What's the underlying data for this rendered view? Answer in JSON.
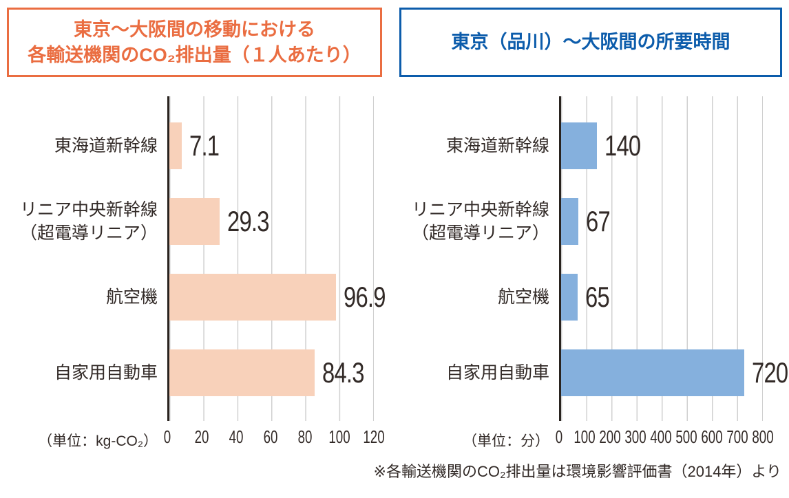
{
  "colors": {
    "background": "#ffffff",
    "text": "#322a27",
    "grid": "#d0d0d0",
    "axis": "#29231f",
    "co2_accent": "#ea6d41",
    "co2_bar": "#f8d1ba",
    "time_accent": "#0c5cab",
    "time_bar": "#85b0dd"
  },
  "footnote": "※各輸送機関のCO₂排出量は環境影響評価書（2014年）より",
  "chart_data": [
    {
      "type": "bar",
      "orientation": "horizontal",
      "title": "東京～大阪間の移動における各輸送機関のCO₂排出量（１人あたり）",
      "title_lines": [
        "東京～大阪間の移動における",
        "各輸送機関のCO₂排出量（１人あたり）"
      ],
      "unit": "（単位：kg-CO₂）",
      "categories": [
        "東海道新幹線",
        "リニア中央新幹線（超電導リニア）",
        "航空機",
        "自家用自動車"
      ],
      "values": [
        7.1,
        29.3,
        96.9,
        84.3
      ],
      "rows": [
        {
          "label_line1": "東海道新幹線",
          "label_line2": "",
          "value_label": "7.1"
        },
        {
          "label_line1": "リニア中央新幹線",
          "label_line2": "（超電導リニア）",
          "value_label": "29.3"
        },
        {
          "label_line1": "航空機",
          "label_line2": "",
          "value_label": "96.9"
        },
        {
          "label_line1": "自家用自動車",
          "label_line2": "",
          "value_label": "84.3"
        }
      ],
      "xlim": [
        0,
        120
      ],
      "tick_labels": [
        "0",
        "20",
        "40",
        "60",
        "80",
        "100",
        "120"
      ],
      "bar_color": "#f8d1ba",
      "accent_color": "#ea6d41",
      "grid": true,
      "legend": "none"
    },
    {
      "type": "bar",
      "orientation": "horizontal",
      "title": "東京（品川）～大阪間の所要時間",
      "title_lines": [
        "東京（品川）～大阪間の所要時間"
      ],
      "unit": "（単位：分）",
      "categories": [
        "東海道新幹線",
        "リニア中央新幹線（超電導リニア）",
        "航空機",
        "自家用自動車"
      ],
      "values": [
        140,
        67,
        65,
        720
      ],
      "rows": [
        {
          "label_line1": "東海道新幹線",
          "label_line2": "",
          "value_label": "140"
        },
        {
          "label_line1": "リニア中央新幹線",
          "label_line2": "（超電導リニア）",
          "value_label": "67"
        },
        {
          "label_line1": "航空機",
          "label_line2": "",
          "value_label": "65"
        },
        {
          "label_line1": "自家用自動車",
          "label_line2": "",
          "value_label": "720"
        }
      ],
      "xlim": [
        0,
        800
      ],
      "tick_labels": [
        "0",
        "100",
        "200",
        "300",
        "400",
        "500",
        "600",
        "700",
        "800"
      ],
      "bar_color": "#85b0dd",
      "accent_color": "#0c5cab",
      "grid": true,
      "legend": "none"
    }
  ]
}
